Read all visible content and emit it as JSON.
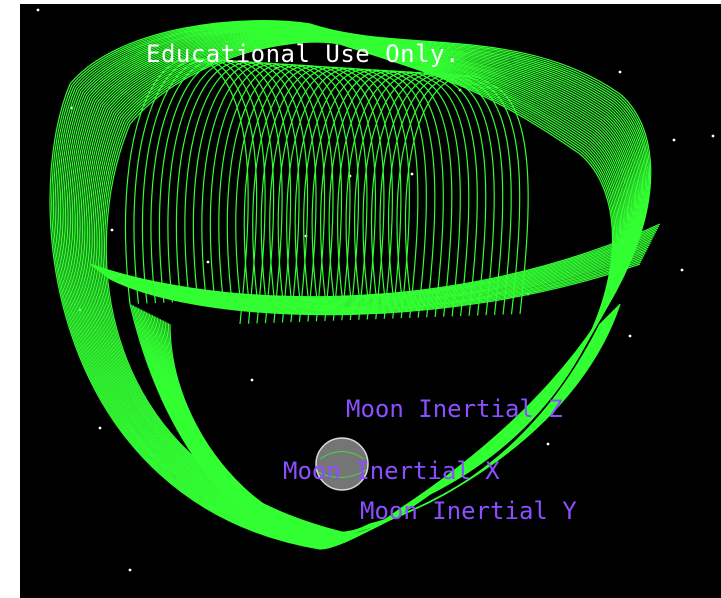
{
  "viewport": {
    "background": "#000000",
    "watermark": "Educational Use Only."
  },
  "orbit": {
    "color": "#33ff33",
    "body_name": "earth-icon"
  },
  "axes": {
    "color": "#8a4fff",
    "z_label": "Moon Inertial Z",
    "x_label": "Moon Inertial X",
    "y_label": "Moon Inertial Y"
  }
}
